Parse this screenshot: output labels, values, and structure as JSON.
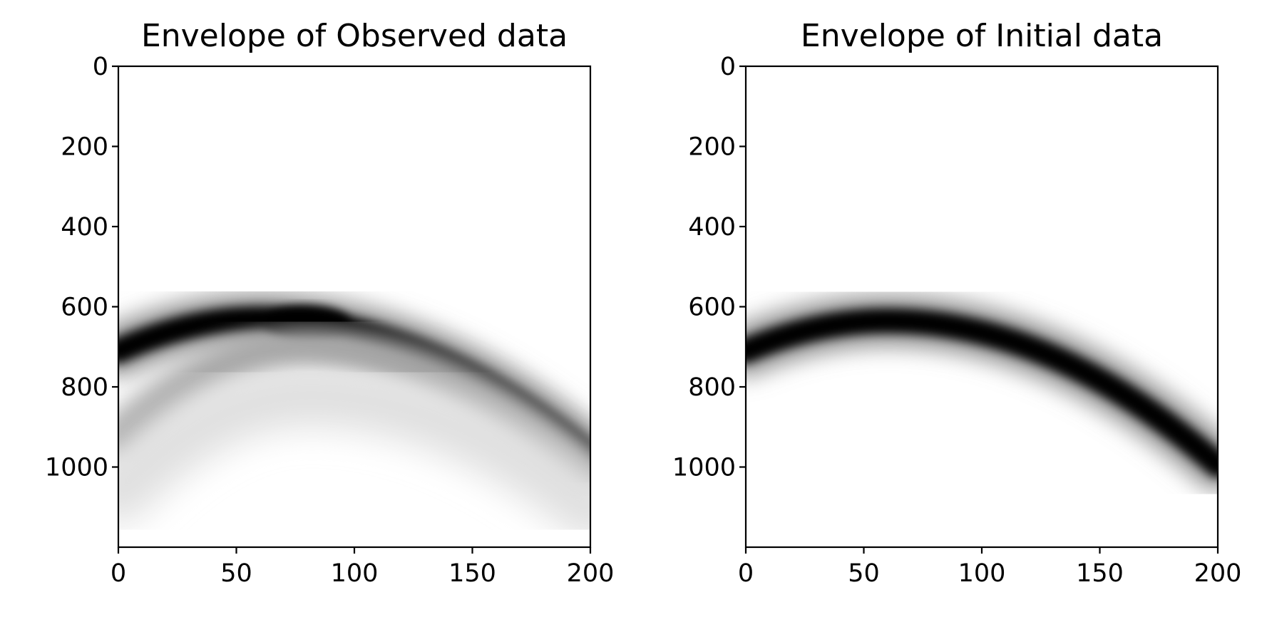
{
  "chart_data": [
    {
      "type": "heatmap",
      "title": "Envelope of Observed data",
      "colormap": "gray_r",
      "xlim": [
        0,
        200
      ],
      "ylim": [
        1200,
        0
      ],
      "xticks": [
        0,
        50,
        100,
        150,
        200
      ],
      "yticks": [
        0,
        200,
        400,
        600,
        800,
        1000
      ],
      "xtick_labels": [
        "0",
        "50",
        "100",
        "150",
        "200"
      ],
      "ytick_labels": [
        "0",
        "200",
        "400",
        "600",
        "800",
        "1000"
      ],
      "features": [
        {
          "kind": "main-arrival",
          "apex_x": 60,
          "apex_y": 630,
          "y_at_x0": 710,
          "y_at_x200": 970,
          "intensity": 1.0
        },
        {
          "kind": "bright-spot",
          "center_x": 80,
          "center_y": 640,
          "intensity": 1.0
        },
        {
          "kind": "secondary-arrival",
          "apex_x": 80,
          "apex_y": 700,
          "y_at_x0": 930,
          "y_at_x200": 1010,
          "intensity": 0.35
        },
        {
          "kind": "faint-arrival",
          "apex_x": 80,
          "apex_y": 820,
          "y_at_x0": 1060,
          "y_at_x200": 1100,
          "intensity": 0.12
        }
      ]
    },
    {
      "type": "heatmap",
      "title": "Envelope of Initial data",
      "colormap": "gray_r",
      "xlim": [
        0,
        200
      ],
      "ylim": [
        1200,
        0
      ],
      "xticks": [
        0,
        50,
        100,
        150,
        200
      ],
      "yticks": [
        0,
        200,
        400,
        600,
        800,
        1000
      ],
      "xtick_labels": [
        "0",
        "50",
        "100",
        "150",
        "200"
      ],
      "ytick_labels": [
        "0",
        "200",
        "400",
        "600",
        "800",
        "1000"
      ],
      "features": [
        {
          "kind": "main-arrival",
          "apex_x": 60,
          "apex_y": 635,
          "y_at_x0": 710,
          "y_at_x200": 995,
          "intensity": 1.0
        }
      ]
    }
  ]
}
